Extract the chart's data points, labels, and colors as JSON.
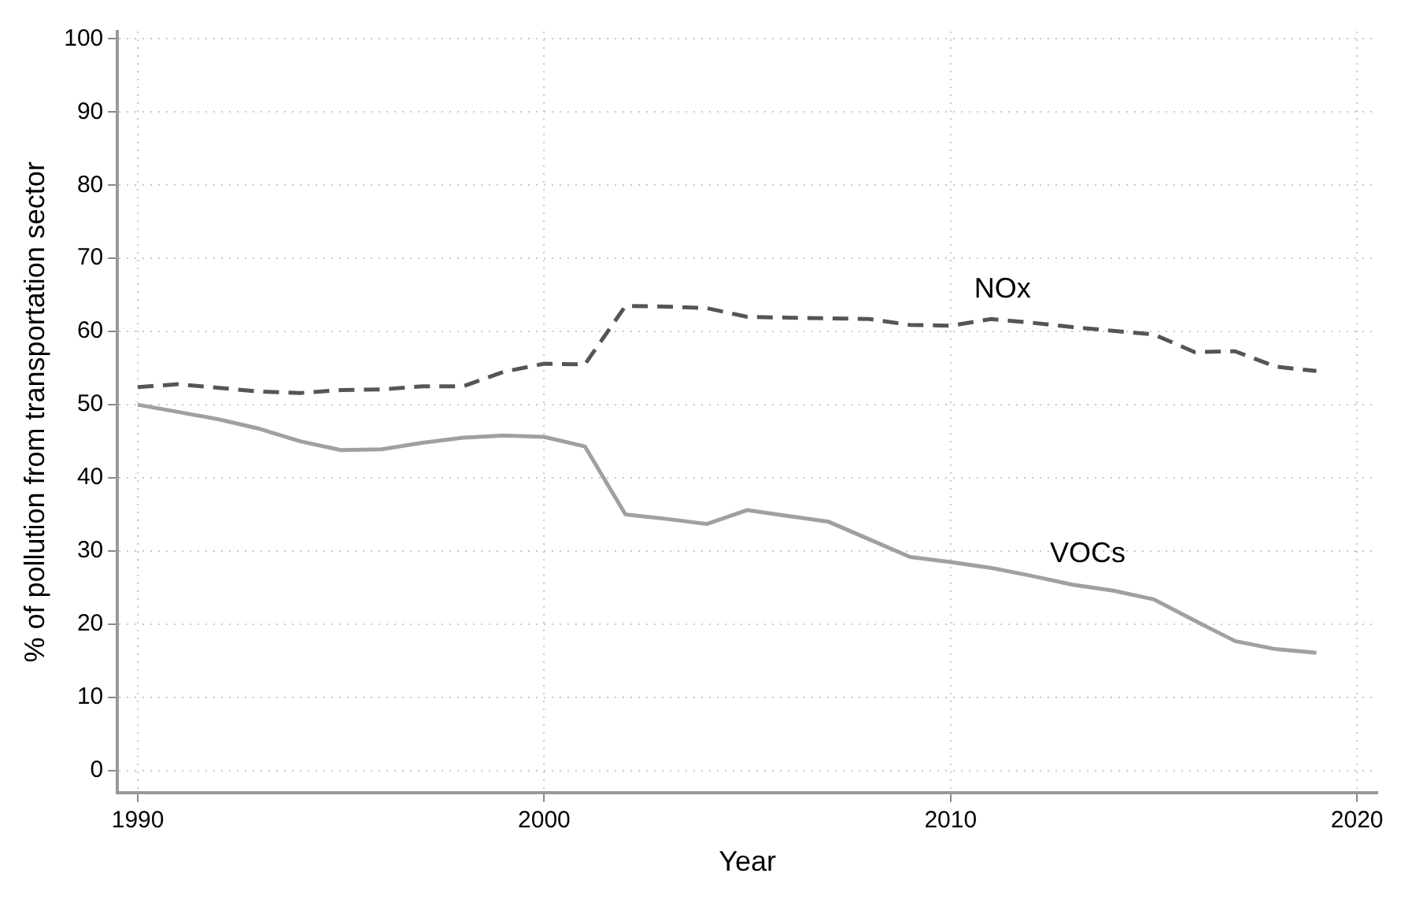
{
  "chart_data": {
    "type": "line",
    "xlabel": "Year",
    "ylabel": "% of pollution from transportation sector",
    "x": [
      1990,
      1991,
      1992,
      1993,
      1994,
      1995,
      1996,
      1997,
      1998,
      1999,
      2000,
      2001,
      2002,
      2003,
      2004,
      2005,
      2006,
      2007,
      2008,
      2009,
      2010,
      2011,
      2012,
      2013,
      2014,
      2015,
      2016,
      2017,
      2018,
      2019
    ],
    "series": [
      {
        "name": "NOx",
        "color": "#555555",
        "line_style": "dashed",
        "values": [
          52.4,
          52.8,
          52.3,
          51.8,
          51.6,
          52.0,
          52.1,
          52.5,
          52.5,
          54.5,
          55.6,
          55.5,
          63.5,
          63.4,
          63.2,
          62.0,
          61.9,
          61.8,
          61.7,
          60.9,
          60.8,
          61.7,
          61.2,
          60.6,
          60.1,
          59.6,
          57.2,
          57.3,
          55.2,
          54.6
        ]
      },
      {
        "name": "VOCs",
        "color": "#a0a0a0",
        "line_style": "solid",
        "values": [
          50.0,
          49.0,
          48.0,
          46.7,
          45.0,
          43.8,
          43.9,
          44.8,
          45.5,
          45.8,
          45.6,
          44.3,
          35.0,
          34.4,
          33.7,
          35.6,
          34.8,
          34.0,
          31.6,
          29.2,
          28.5,
          27.7,
          26.6,
          25.4,
          24.6,
          23.4,
          20.5,
          17.7,
          16.6,
          16.1
        ]
      }
    ],
    "xlim": [
      1989.5,
      2020.5
    ],
    "xticks": [
      1990,
      2000,
      2010,
      2020
    ],
    "ylim": [
      -3,
      101
    ],
    "yticks": [
      0,
      10,
      20,
      30,
      40,
      50,
      60,
      70,
      80,
      90,
      100
    ],
    "grid": true,
    "legend": false,
    "marker": "none"
  }
}
